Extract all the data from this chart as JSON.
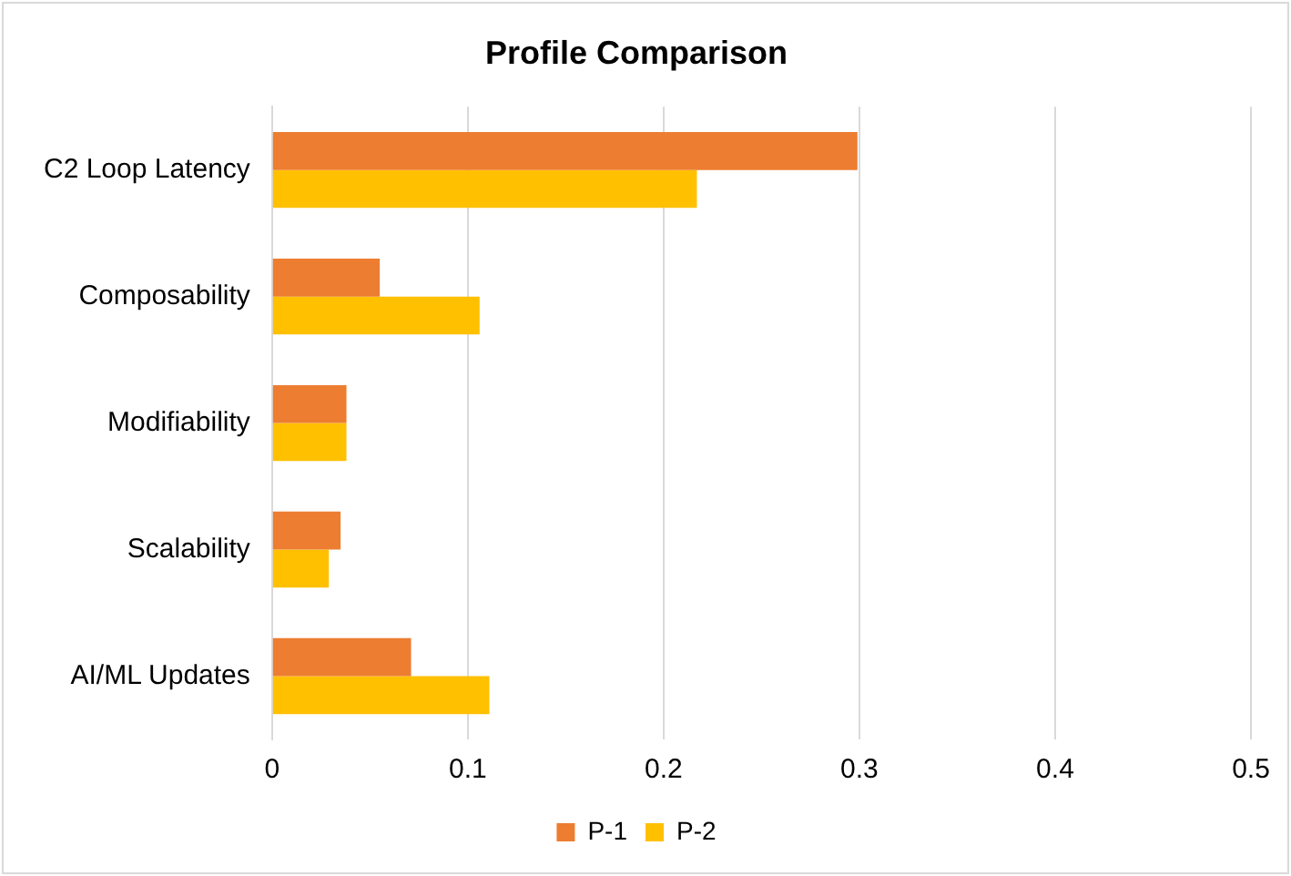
{
  "chart_data": {
    "type": "bar",
    "orientation": "horizontal",
    "title": "Profile Comparison",
    "categories": [
      "C2 Loop Latency",
      "Composability",
      "Modifiability",
      "Scalability",
      "AI/ML Updates"
    ],
    "series": [
      {
        "name": "P-1",
        "color": "#ed7d31",
        "values": [
          0.299,
          0.055,
          0.038,
          0.035,
          0.071
        ]
      },
      {
        "name": "P-2",
        "color": "#ffc000",
        "values": [
          0.217,
          0.106,
          0.038,
          0.029,
          0.111
        ]
      }
    ],
    "xlim": [
      0,
      0.5
    ],
    "xticks": [
      0,
      0.1,
      0.2,
      0.3,
      0.4,
      0.5
    ],
    "grid": "x",
    "legend": "bottom"
  }
}
